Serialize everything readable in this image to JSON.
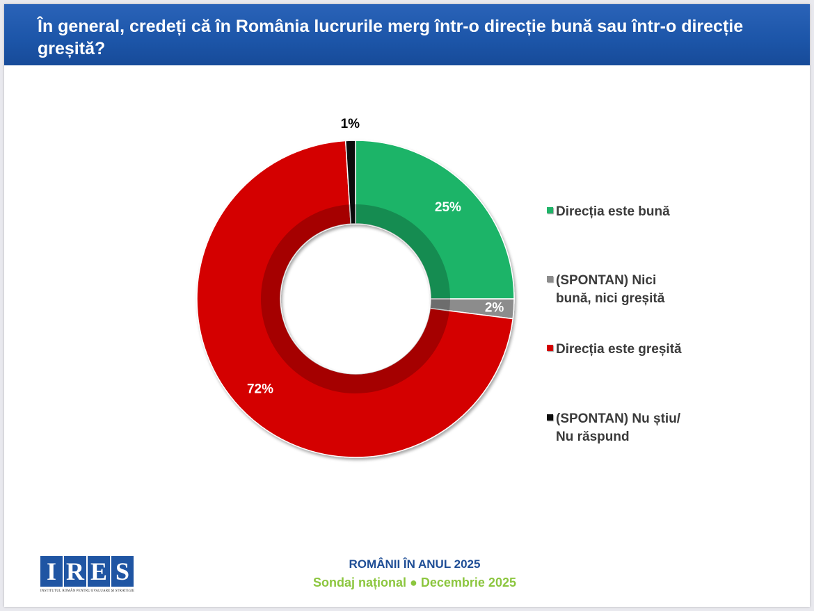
{
  "header": {
    "title": "În general, credeți că în România lucrurile merg într-o direcție bună sau într-o direcție greșită?"
  },
  "chart_data": {
    "type": "pie",
    "donut": true,
    "legend_position": "right",
    "categories": [
      "Direcția este bună",
      "(SPONTAN) Nici bună, nici greșită",
      "Direcția este greșită",
      "(SPONTAN) Nu știu/ Nu răspund"
    ],
    "values": [
      25,
      2,
      72,
      1
    ],
    "labels": [
      "25%",
      "2%",
      "72%",
      "1%"
    ],
    "colors": [
      "#1fb468",
      "#8c8c8c",
      "#d40000",
      "#0d0d0d"
    ]
  },
  "footer": {
    "title": "ROMÂNII ÎN ANUL 2025",
    "subtitle": "Sondaj național ● Decembrie 2025"
  },
  "logo": {
    "letters": [
      "I",
      "R",
      "E",
      "S"
    ],
    "caption": "INSTITUTUL ROMÂN PENTRU EVALUARE ȘI STRATEGIE"
  }
}
